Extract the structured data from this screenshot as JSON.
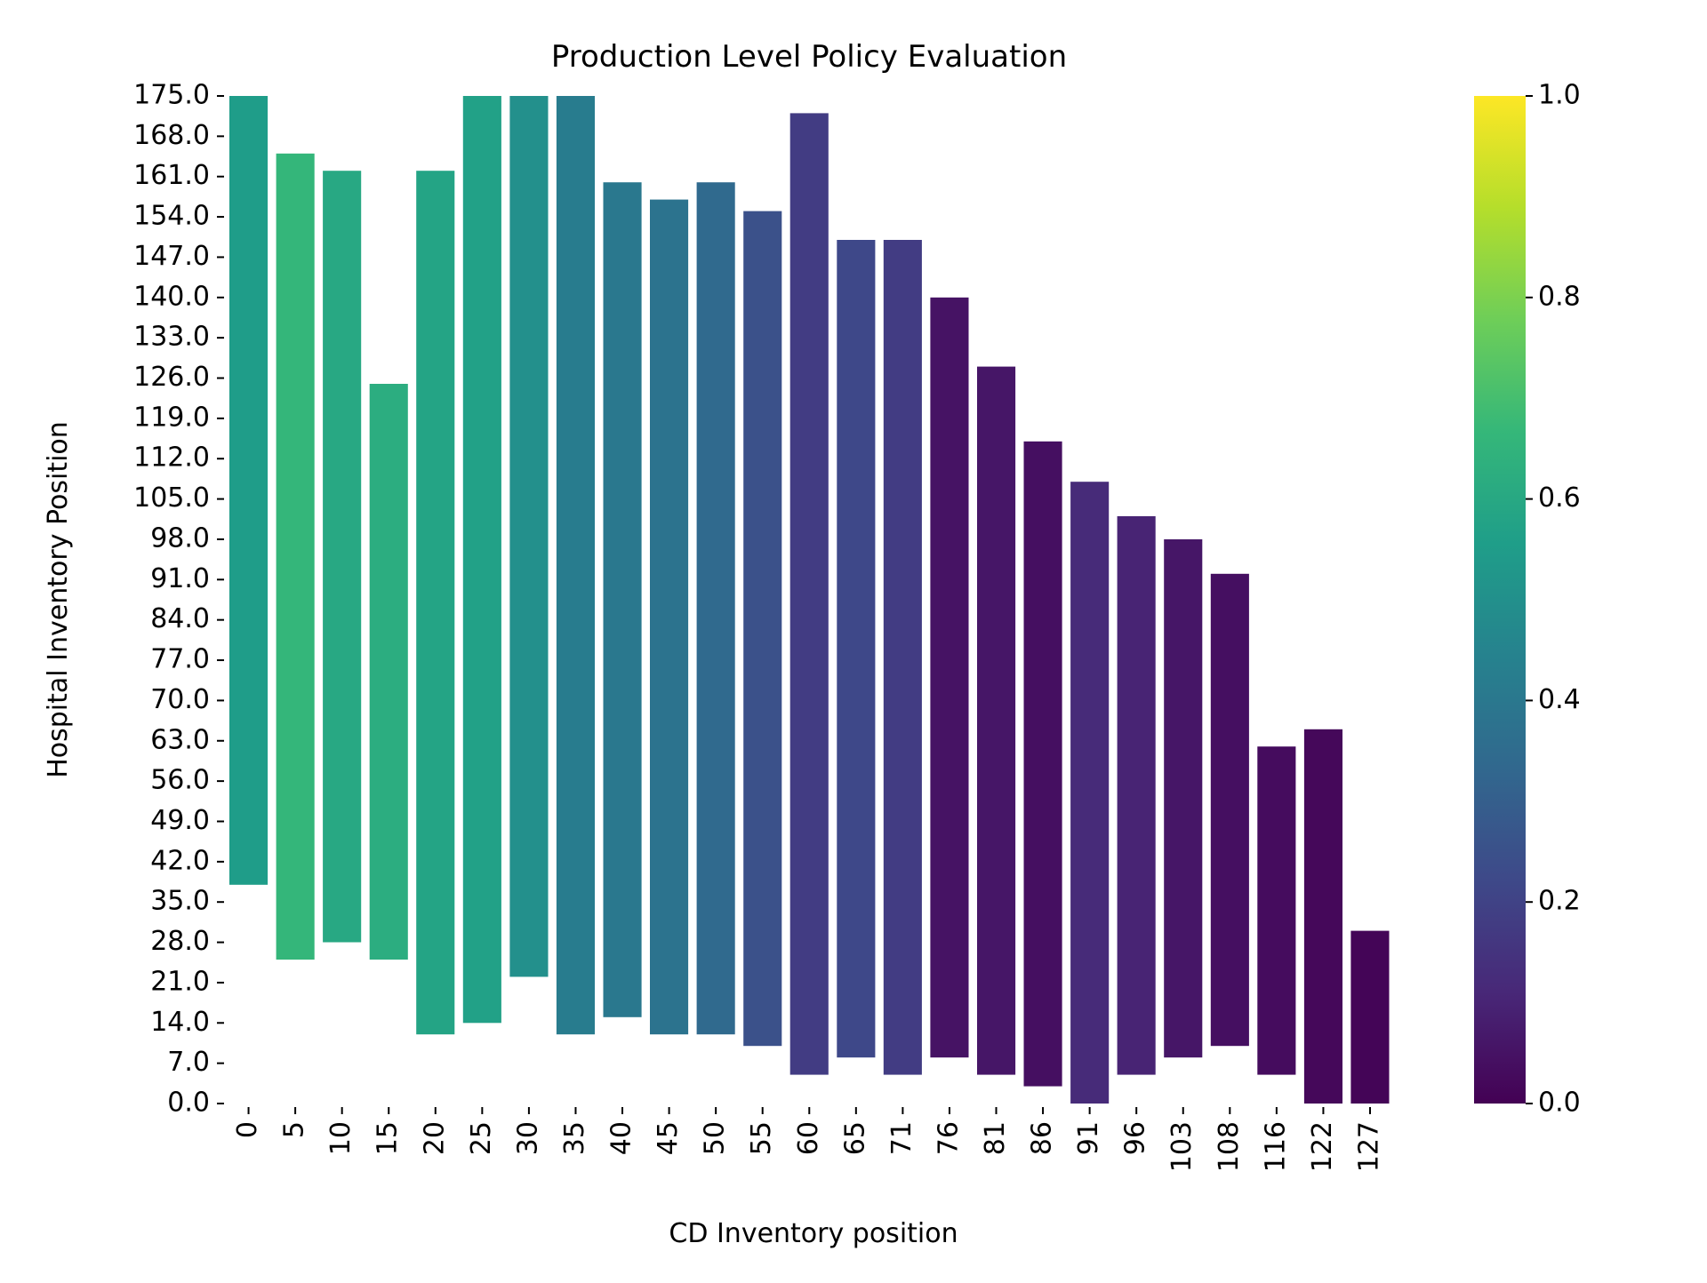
{
  "chart_data": {
    "type": "heatmap",
    "title": "Production Level Policy Evaluation",
    "xlabel": "CD Inventory position",
    "ylabel": "Hospital Inventory Position",
    "colormap": "viridis",
    "colorbar": {
      "min": 0.0,
      "max": 1.0,
      "ticks": [
        "0.0",
        "0.2",
        "0.4",
        "0.6",
        "0.8",
        "1.0"
      ],
      "stops": [
        "#440154",
        "#482878",
        "#3e4989",
        "#31688e",
        "#26828e",
        "#1f9e89",
        "#35b779",
        "#6ece58",
        "#b5de2b",
        "#fde725"
      ]
    },
    "x_tick_labels": [
      "0",
      "5",
      "10",
      "15",
      "20",
      "25",
      "30",
      "35",
      "40",
      "45",
      "50",
      "55",
      "60",
      "65",
      "71",
      "76",
      "81",
      "86",
      "91",
      "96",
      "103",
      "108",
      "116",
      "122",
      "127"
    ],
    "y_tick_labels": [
      "175.0",
      "168.0",
      "161.0",
      "154.0",
      "147.0",
      "140.0",
      "133.0",
      "126.0",
      "119.0",
      "112.0",
      "105.0",
      "98.0",
      "91.0",
      "84.0",
      "77.0",
      "70.0",
      "63.0",
      "56.0",
      "49.0",
      "42.0",
      "35.0",
      "28.0",
      "21.0",
      "14.0",
      "7.0",
      "0.0"
    ],
    "xlim": [
      0,
      130
    ],
    "ylim": [
      0,
      175
    ],
    "grid": false,
    "columns": [
      {
        "x": 0,
        "y_min": 38,
        "y_max": 175,
        "value": 0.55
      },
      {
        "x": 5,
        "y_min": 25,
        "y_max": 165,
        "value": 0.66
      },
      {
        "x": 10,
        "y_min": 28,
        "y_max": 162,
        "value": 0.6
      },
      {
        "x": 15,
        "y_min": 25,
        "y_max": 125,
        "value": 0.62
      },
      {
        "x": 20,
        "y_min": 12,
        "y_max": 162,
        "value": 0.58
      },
      {
        "x": 25,
        "y_min": 14,
        "y_max": 175,
        "value": 0.57
      },
      {
        "x": 30,
        "y_min": 22,
        "y_max": 175,
        "value": 0.5
      },
      {
        "x": 35,
        "y_min": 12,
        "y_max": 175,
        "value": 0.42
      },
      {
        "x": 40,
        "y_min": 15,
        "y_max": 160,
        "value": 0.4
      },
      {
        "x": 45,
        "y_min": 12,
        "y_max": 157,
        "value": 0.38
      },
      {
        "x": 50,
        "y_min": 12,
        "y_max": 160,
        "value": 0.34
      },
      {
        "x": 55,
        "y_min": 10,
        "y_max": 155,
        "value": 0.25
      },
      {
        "x": 60,
        "y_min": 5,
        "y_max": 172,
        "value": 0.18
      },
      {
        "x": 65,
        "y_min": 8,
        "y_max": 150,
        "value": 0.22
      },
      {
        "x": 71,
        "y_min": 5,
        "y_max": 150,
        "value": 0.18
      },
      {
        "x": 76,
        "y_min": 8,
        "y_max": 140,
        "value": 0.05
      },
      {
        "x": 81,
        "y_min": 5,
        "y_max": 128,
        "value": 0.06
      },
      {
        "x": 86,
        "y_min": 3,
        "y_max": 115,
        "value": 0.04
      },
      {
        "x": 91,
        "y_min": 0,
        "y_max": 108,
        "value": 0.12
      },
      {
        "x": 96,
        "y_min": 5,
        "y_max": 102,
        "value": 0.1
      },
      {
        "x": 103,
        "y_min": 8,
        "y_max": 98,
        "value": 0.06
      },
      {
        "x": 108,
        "y_min": 10,
        "y_max": 92,
        "value": 0.04
      },
      {
        "x": 116,
        "y_min": 5,
        "y_max": 62,
        "value": 0.03
      },
      {
        "x": 122,
        "y_min": 0,
        "y_max": 65,
        "value": 0.02
      },
      {
        "x": 127,
        "y_min": 0,
        "y_max": 30,
        "value": 0.01
      }
    ]
  }
}
